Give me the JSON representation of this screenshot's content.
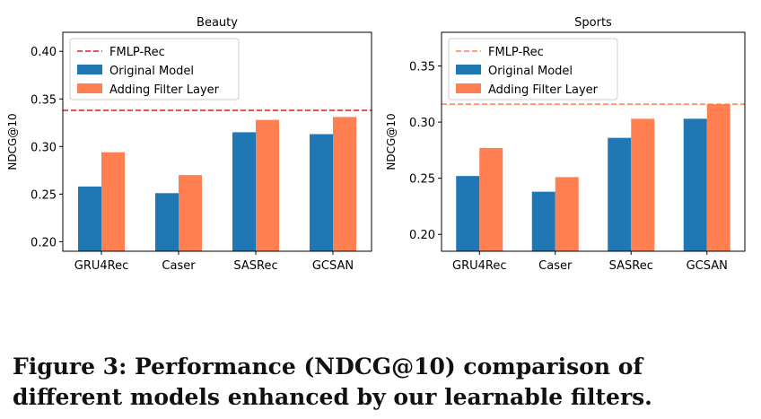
{
  "chart_data": [
    {
      "type": "bar",
      "title": "Beauty",
      "ylabel": "NDCG@10",
      "xlabel": "",
      "categories": [
        "GRU4Rec",
        "Caser",
        "SASRec",
        "GCSAN"
      ],
      "series": [
        {
          "name": "Original Model",
          "color": "#1f77b4",
          "values": [
            0.258,
            0.251,
            0.315,
            0.313
          ]
        },
        {
          "name": "Adding Filter Layer",
          "color": "#ff7f50",
          "values": [
            0.294,
            0.27,
            0.328,
            0.331
          ]
        }
      ],
      "reference": {
        "name": "FMLP-Rec",
        "color": "#e41a1c",
        "value": 0.338
      },
      "ylim": [
        0.19,
        0.42
      ],
      "yticks": [
        0.2,
        0.25,
        0.3,
        0.35,
        0.4
      ],
      "ytick_labels": [
        "0.20",
        "0.25",
        "0.30",
        "0.35",
        "0.40"
      ],
      "legend": "top-left"
    },
    {
      "type": "bar",
      "title": "Sports",
      "ylabel": "NDCG@10",
      "xlabel": "",
      "categories": [
        "GRU4Rec",
        "Caser",
        "SASRec",
        "GCSAN"
      ],
      "series": [
        {
          "name": "Original Model",
          "color": "#1f77b4",
          "values": [
            0.252,
            0.238,
            0.286,
            0.303
          ]
        },
        {
          "name": "Adding Filter Layer",
          "color": "#ff7f50",
          "values": [
            0.277,
            0.251,
            0.303,
            0.316
          ]
        }
      ],
      "reference": {
        "name": "FMLP-Rec",
        "color": "#ff7f50",
        "value": 0.316
      },
      "ylim": [
        0.185,
        0.38
      ],
      "yticks": [
        0.2,
        0.25,
        0.3,
        0.35
      ],
      "ytick_labels": [
        "0.20",
        "0.25",
        "0.30",
        "0.35"
      ],
      "legend": "top-left"
    }
  ],
  "caption": "Figure 3: Performance (NDCG@10) comparison of different models enhanced by our learnable filters."
}
